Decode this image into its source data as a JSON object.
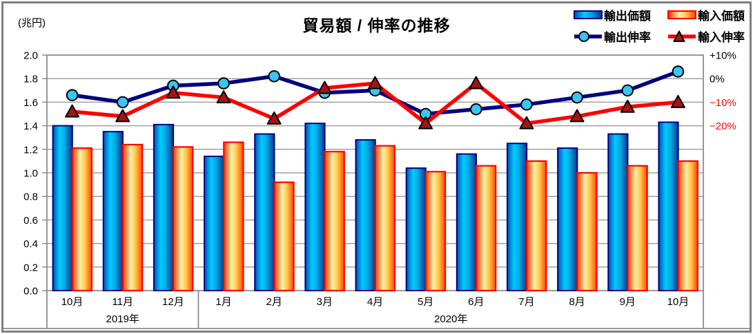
{
  "header": {
    "unit_label": "(兆円)",
    "title": "貿易額 / 伸率の推移"
  },
  "legend": {
    "export_value": "輸出価額",
    "import_value": "輸入価額",
    "export_growth": "輸出伸率",
    "import_growth": "輸入伸率"
  },
  "chart_data": {
    "type": "combo: bar (trade value, 兆円) + line (YoY growth rate, %)",
    "title": "貿易額 / 伸率の推移",
    "categories": [
      "10月",
      "11月",
      "12月",
      "1月",
      "2月",
      "3月",
      "4月",
      "5月",
      "6月",
      "7月",
      "8月",
      "9月",
      "10月"
    ],
    "year_groups": [
      {
        "label": "2019年",
        "start": 0,
        "end": 2
      },
      {
        "label": "2020年",
        "start": 3,
        "end": 12
      }
    ],
    "bar_series": [
      {
        "name": "輸出価額",
        "unit": "兆円",
        "values": [
          1.4,
          1.35,
          1.41,
          1.14,
          1.33,
          1.42,
          1.28,
          1.04,
          1.16,
          1.25,
          1.21,
          1.33,
          1.43
        ]
      },
      {
        "name": "輸入価額",
        "unit": "兆円",
        "values": [
          1.21,
          1.24,
          1.22,
          1.26,
          0.92,
          1.18,
          1.23,
          1.01,
          1.06,
          1.1,
          1.0,
          1.06,
          1.1
        ]
      }
    ],
    "line_series": [
      {
        "name": "輸出伸率",
        "unit": "%",
        "values": [
          -7,
          -10,
          -3,
          -2,
          1,
          -6,
          -5,
          -15,
          -13,
          -11,
          -8,
          -5,
          3
        ]
      },
      {
        "name": "輸入伸率",
        "unit": "%",
        "values": [
          -14,
          -16,
          -6,
          -8,
          -17,
          -4,
          -2,
          -19,
          -2,
          -19,
          -16,
          -12,
          -10
        ]
      }
    ],
    "left_axis": {
      "unit": "兆円",
      "min": 0.0,
      "max": 2.0,
      "step": 0.2,
      "tick_labels": [
        "0.0",
        "0.2",
        "0.4",
        "0.6",
        "0.8",
        "1.0",
        "1.2",
        "1.4",
        "1.6",
        "1.8",
        "2.0"
      ]
    },
    "right_axis": {
      "unit": "%",
      "zero_at_left_value": 1.8,
      "percent_per_left_unit": 50,
      "tick_labels": [
        {
          "text": "+10%",
          "value": 10,
          "color": "#000000"
        },
        {
          "text": "0%",
          "value": 0,
          "color": "#000000"
        },
        {
          "text": "−10%",
          "value": -10,
          "color": "#ff0000"
        },
        {
          "text": "−20%",
          "value": -20,
          "color": "#ff0000"
        }
      ]
    },
    "grid": true,
    "legend_position": "top-right",
    "colors": {
      "export_bar_border": "#000080",
      "import_bar_border": "#ff0000",
      "export_line": "#000080",
      "import_line": "#ff0000",
      "export_marker_fill": "#38c6f5",
      "import_marker_fill": "#a31515",
      "marker_outline": "#000000",
      "gridline": "#a0a0a0",
      "plot_border": "#8c8c8c",
      "negative_label": "#ff0000"
    }
  }
}
